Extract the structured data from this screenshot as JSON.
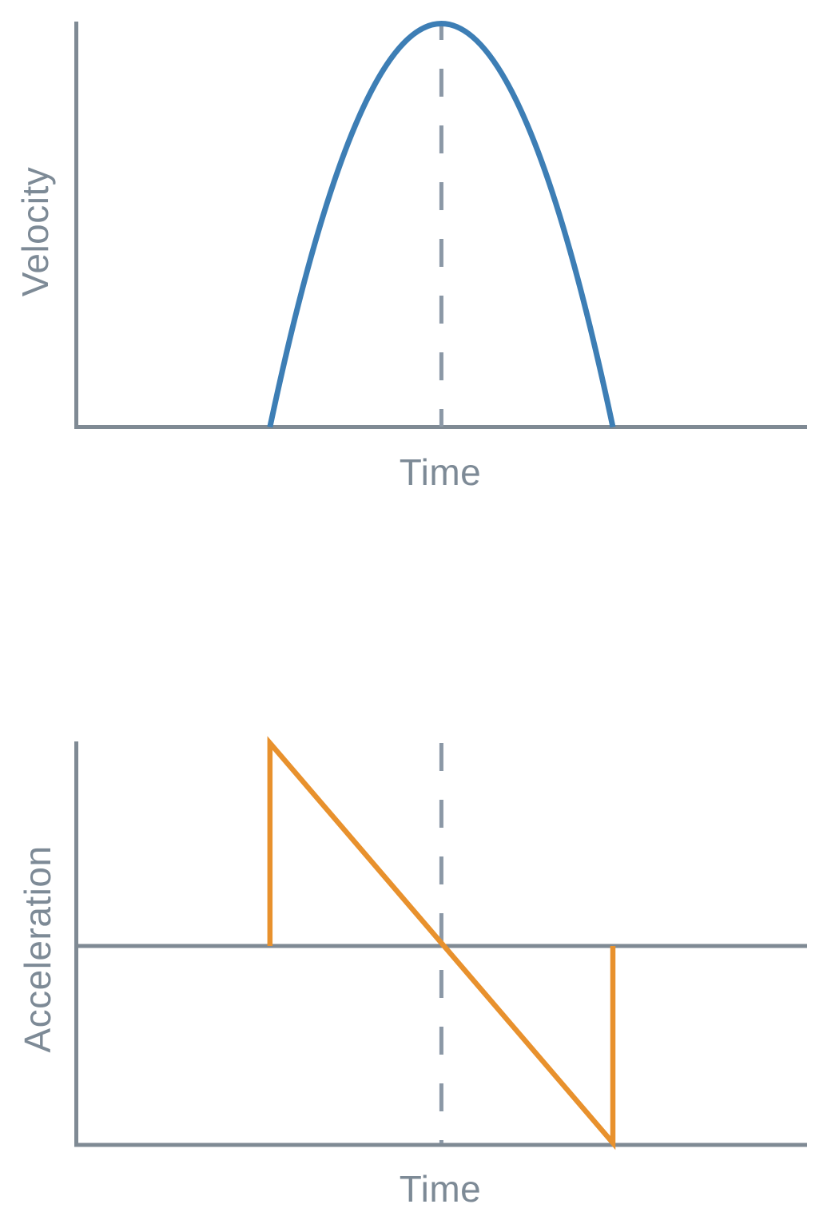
{
  "page": {
    "background": "#ffffff"
  },
  "colors": {
    "axis": "#7f8a94",
    "dashed_guide": "#8b98a6",
    "label_text": "#7d8a96",
    "velocity_line": "#3d7eb5",
    "acceleration_line": "#e8912d"
  },
  "chart_data": [
    {
      "id": "velocity-vs-time",
      "type": "line",
      "xlabel": "Time",
      "ylabel": "Velocity",
      "xlim": [
        0,
        1
      ],
      "ylim": [
        0,
        1.05
      ],
      "x_ticks": [],
      "y_ticks": [],
      "grid": false,
      "guides": [
        {
          "kind": "vline",
          "style": "dashed",
          "x": 0.501,
          "color": "#8b98a6"
        }
      ],
      "series": [
        {
          "name": "velocity",
          "color": "#3d7eb5",
          "shape": "parabola",
          "points": [
            [
              0.267,
              0
            ],
            [
              0.501,
              1
            ],
            [
              0.735,
              0
            ]
          ]
        }
      ]
    },
    {
      "id": "acceleration-vs-time",
      "type": "line",
      "xlabel": "Time",
      "ylabel": "Acceleration",
      "xlim": [
        0,
        1
      ],
      "ylim": [
        -1.05,
        1.05
      ],
      "x_ticks": [],
      "y_ticks": [],
      "grid": false,
      "zero_line": true,
      "guides": [
        {
          "kind": "vline",
          "style": "dashed",
          "x": 0.501,
          "color": "#8b98a6"
        }
      ],
      "series": [
        {
          "name": "acceleration",
          "color": "#e8912d",
          "shape": "polyline",
          "points": [
            [
              0.267,
              0
            ],
            [
              0.267,
              1
            ],
            [
              0.735,
              -0.99
            ],
            [
              0.735,
              0
            ]
          ]
        }
      ]
    }
  ]
}
